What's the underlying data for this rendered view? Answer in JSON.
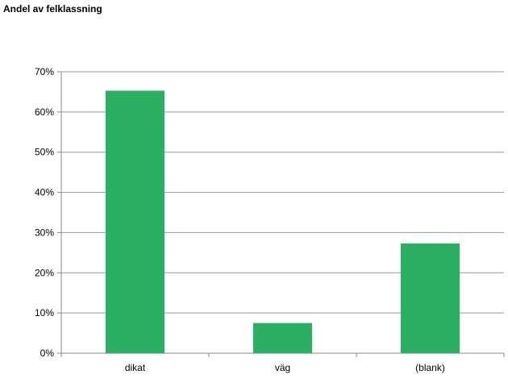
{
  "chart_data": {
    "type": "bar",
    "title": "Andel av felklassning",
    "categories": [
      "dikat",
      "väg",
      "(blank)"
    ],
    "values": [
      65.3,
      7.5,
      27.3
    ],
    "ylim": [
      0,
      70
    ],
    "yticks": [
      0,
      10,
      20,
      30,
      40,
      50,
      60,
      70
    ],
    "ytick_suffix": "%",
    "bar_color": "#2bb063",
    "grid": true,
    "legend": "none",
    "xlabel": "",
    "ylabel": ""
  }
}
